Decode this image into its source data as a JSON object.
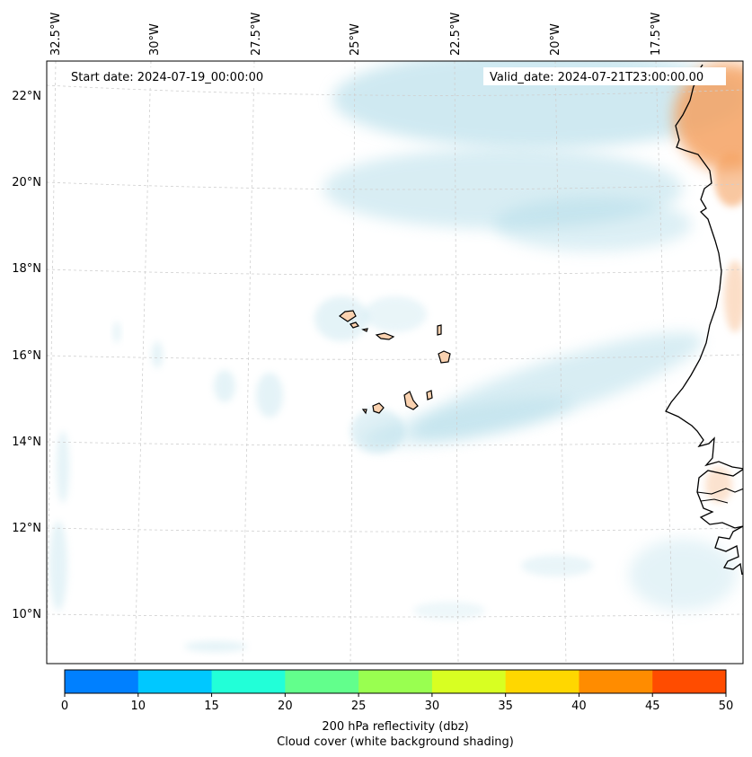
{
  "header": {
    "start_date": "Start date: 2024-07-19_00:00:00",
    "valid_date": "Valid_date: 2024-07-21T23:00:00.00"
  },
  "longitude_labels": [
    "32.5°W",
    "30°W",
    "27.5°W",
    "25°W",
    "22.5°W",
    "20°W",
    "17.5°W"
  ],
  "latitude_labels": [
    "22°N",
    "20°N",
    "18°N",
    "16°N",
    "14°N",
    "12°N",
    "10°N"
  ],
  "colorbar": {
    "ticks": [
      "0",
      "10",
      "15",
      "20",
      "25",
      "30",
      "35",
      "40",
      "45",
      "50"
    ],
    "colors": [
      "#0080ff",
      "#00c8ff",
      "#22ffd8",
      "#62ff8c",
      "#99ff50",
      "#d8ff22",
      "#ffd700",
      "#ff8c00",
      "#ff4c00"
    ],
    "label_line1": "200 hPa reflectivity (dbz)",
    "label_line2": "Cloud cover (white background shading)"
  },
  "colors": {
    "cloud_shade": "#a9d8e6",
    "land_shade": "#f5a262",
    "coastline": "#000000",
    "gridline": "#cfcfcf"
  }
}
